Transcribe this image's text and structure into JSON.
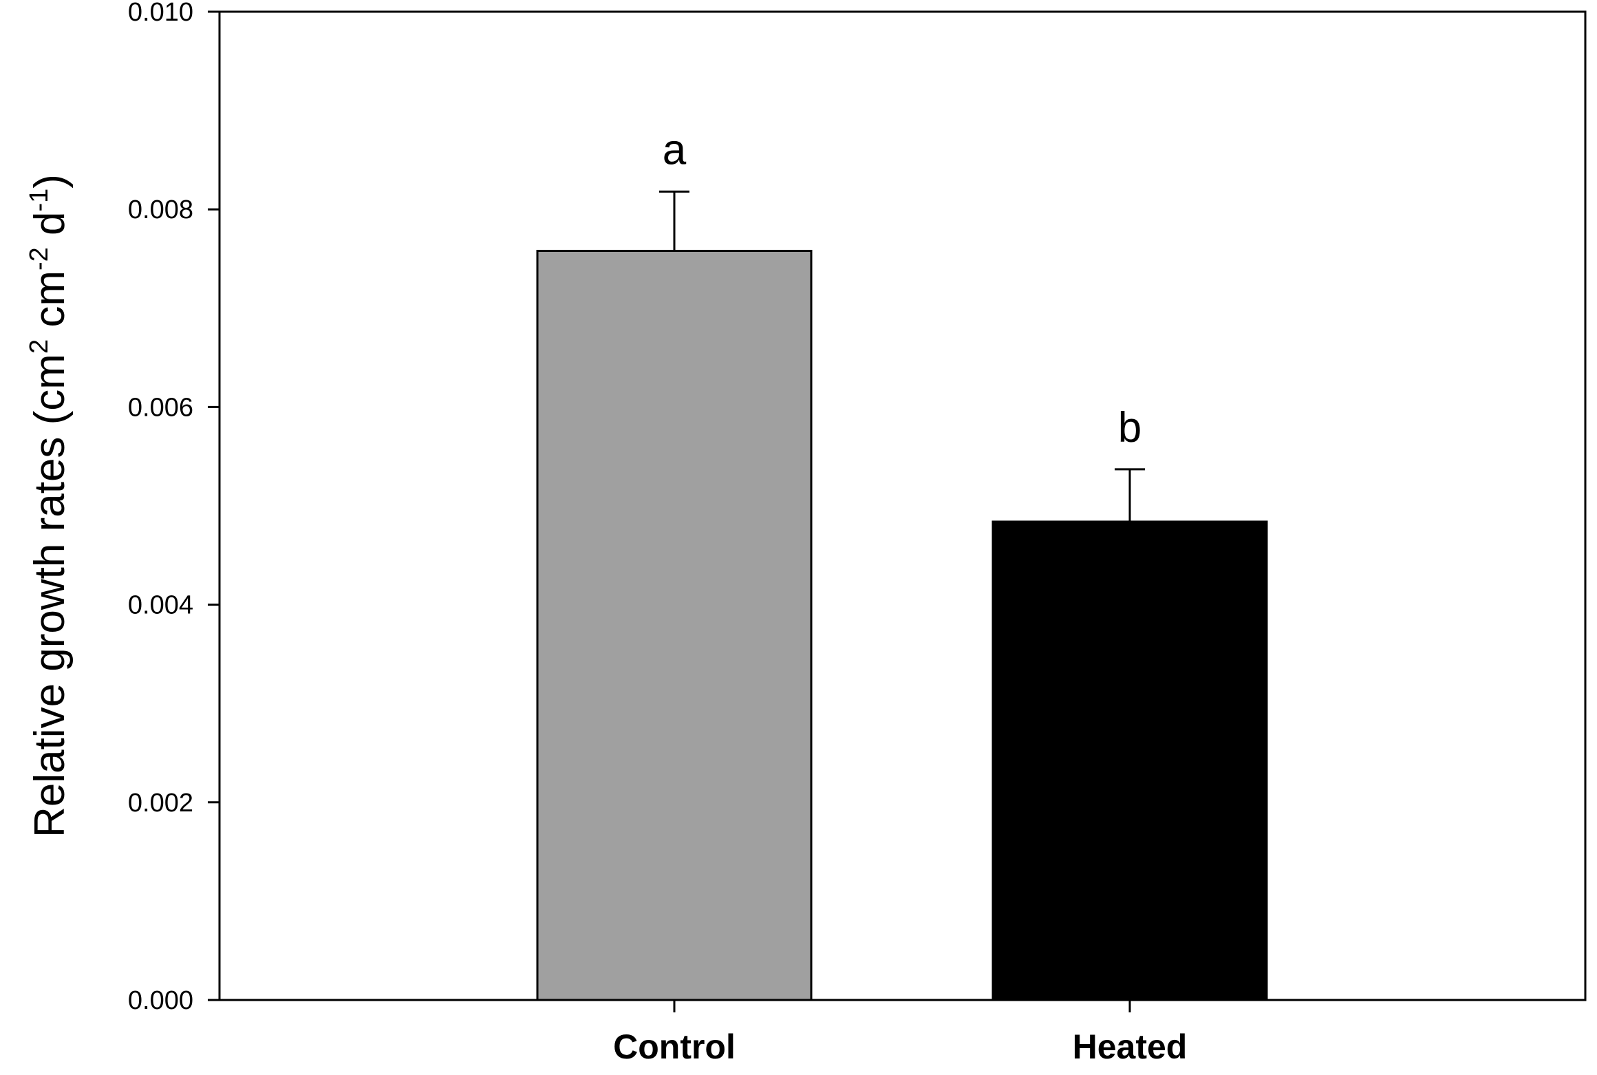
{
  "chart_data": {
    "type": "bar",
    "categories": [
      "Control",
      "Heated"
    ],
    "values": [
      0.00758,
      0.00484
    ],
    "errors": [
      0.0006,
      0.00053
    ],
    "significance_letters": [
      "a",
      "b"
    ],
    "bar_colors": [
      "#a0a0a0",
      "#000000"
    ],
    "title": "",
    "xlabel": "",
    "ylabel": {
      "text": "Relative growth rates (cm",
      "sup1": "2",
      "mid1": " cm",
      "sup2": "-2",
      "mid2": " d",
      "sup3": "-1",
      "end": ")"
    },
    "ylim": [
      0.0,
      0.01
    ],
    "yticks": [
      "0.000",
      "0.002",
      "0.004",
      "0.006",
      "0.008",
      "0.010"
    ],
    "grid": false,
    "legend": "none"
  }
}
